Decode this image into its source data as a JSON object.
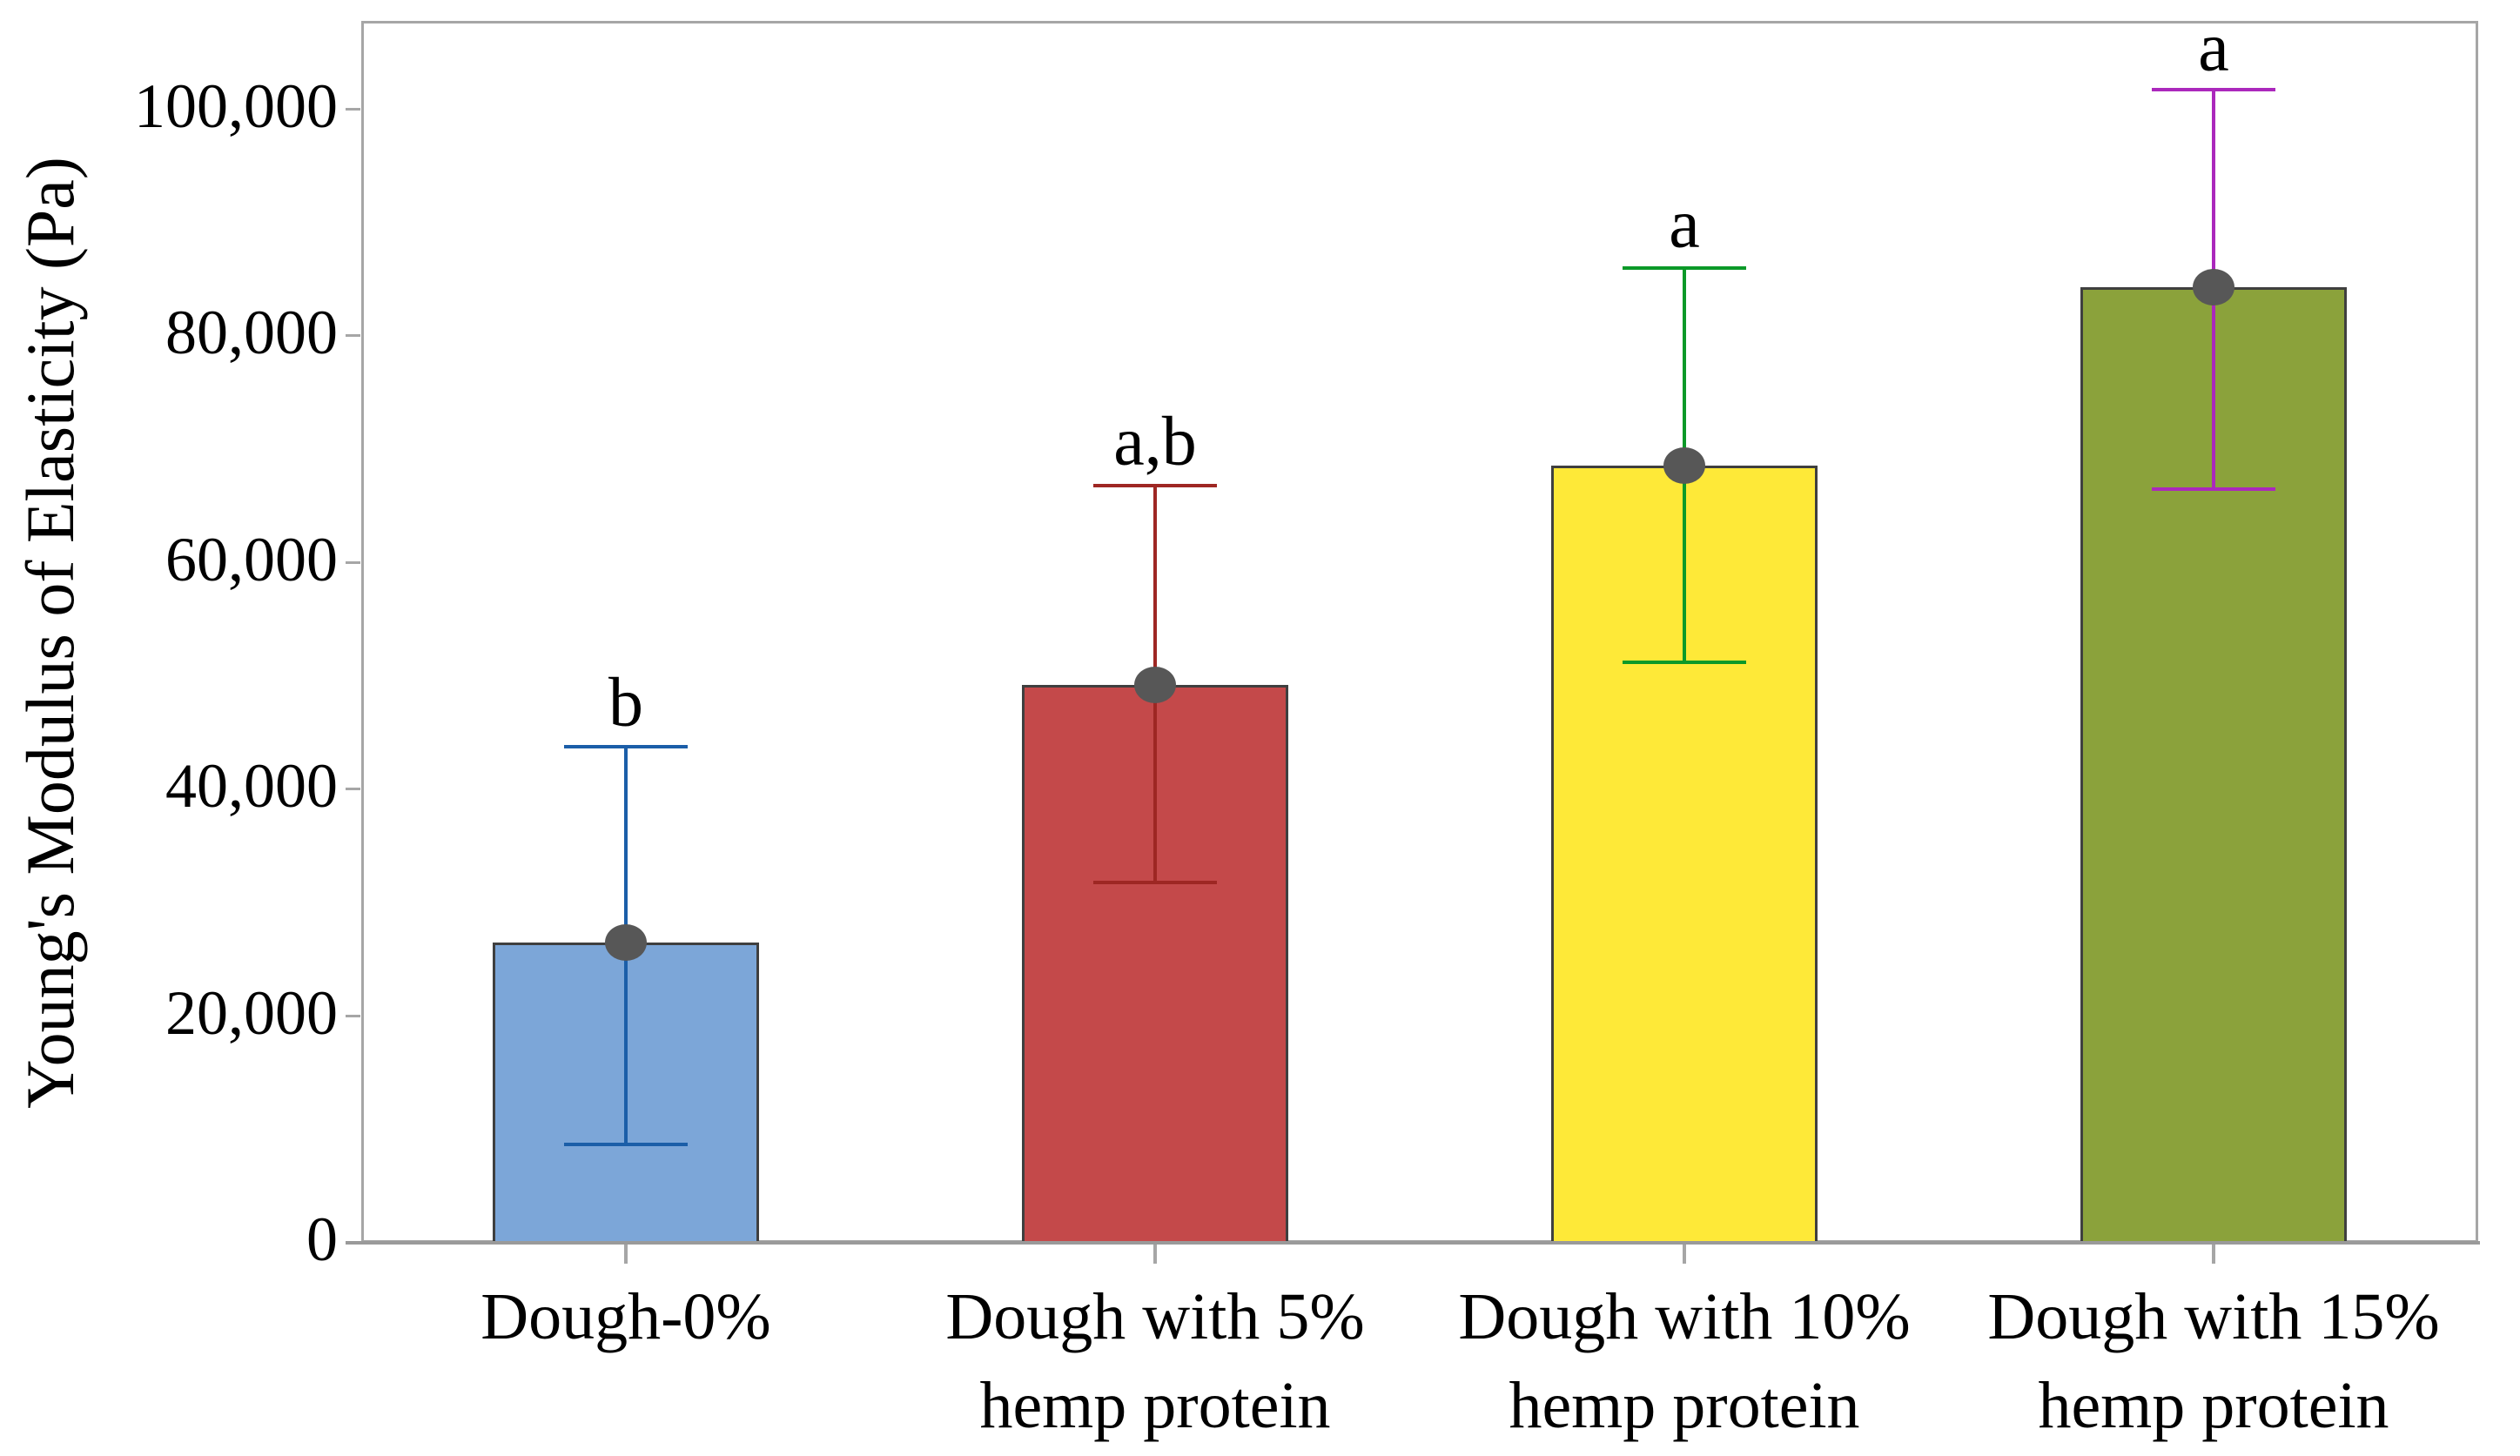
{
  "figure": {
    "background": "#FFFFFF",
    "axis_color": "#A6A6A6",
    "bottom_axis_color": "#9A9A9A",
    "bar_border_color": "#3F3F3F",
    "marker_color": "#575757",
    "text_color": "#000000"
  },
  "y_axis": {
    "title": "Young's Modulus of Elasticity (Pa)",
    "ticks": [
      {
        "value": 0,
        "label": "0"
      },
      {
        "value": 20000,
        "label": "20,000"
      },
      {
        "value": 40000,
        "label": "40,000"
      },
      {
        "value": 60000,
        "label": "60,000"
      },
      {
        "value": 80000,
        "label": "80,000"
      },
      {
        "value": 100000,
        "label": "100,000"
      }
    ]
  },
  "chart_data": {
    "type": "bar",
    "title": "",
    "xlabel": "",
    "ylabel": "Young's Modulus of Elasticity (Pa)",
    "ylim": [
      0,
      107800
    ],
    "grid": false,
    "legend": false,
    "categories": [
      "Dough-0%",
      "Dough with 5% hemp protein",
      "Dough with 10% hemp protein",
      "Dough with 15% hemp protein"
    ],
    "series": [
      {
        "name": "Young's Modulus of Elasticity (Pa)",
        "values": [
          26500,
          49200,
          68600,
          84300
        ]
      }
    ],
    "error_bars": {
      "upper": [
        43800,
        66800,
        86000,
        101700
      ],
      "lower": [
        8700,
        31800,
        51200,
        66500
      ]
    },
    "significance_letters": [
      "b",
      "a,b",
      "a",
      "a"
    ],
    "bars": [
      {
        "label_lines": [
          "Dough-0%"
        ],
        "mean": 26500,
        "error_upper": 43800,
        "error_lower": 8700,
        "letter": "b",
        "fill": "#7CA6D8",
        "error_color": "#1B5EA8"
      },
      {
        "label_lines": [
          "Dough with 5%",
          "hemp protein"
        ],
        "mean": 49200,
        "error_upper": 66800,
        "error_lower": 31800,
        "letter": "a,b",
        "fill": "#C4494A",
        "error_color": "#9E2723"
      },
      {
        "label_lines": [
          "Dough with 10%",
          "hemp protein"
        ],
        "mean": 68600,
        "error_upper": 86000,
        "error_lower": 51200,
        "letter": "a",
        "fill": "#FEE938",
        "error_color": "#0B9928"
      },
      {
        "label_lines": [
          "Dough with 15%",
          "hemp protein"
        ],
        "mean": 84300,
        "error_upper": 101700,
        "error_lower": 66500,
        "letter": "a",
        "fill": "#8BA23B",
        "error_color": "#AB28BC"
      }
    ]
  }
}
